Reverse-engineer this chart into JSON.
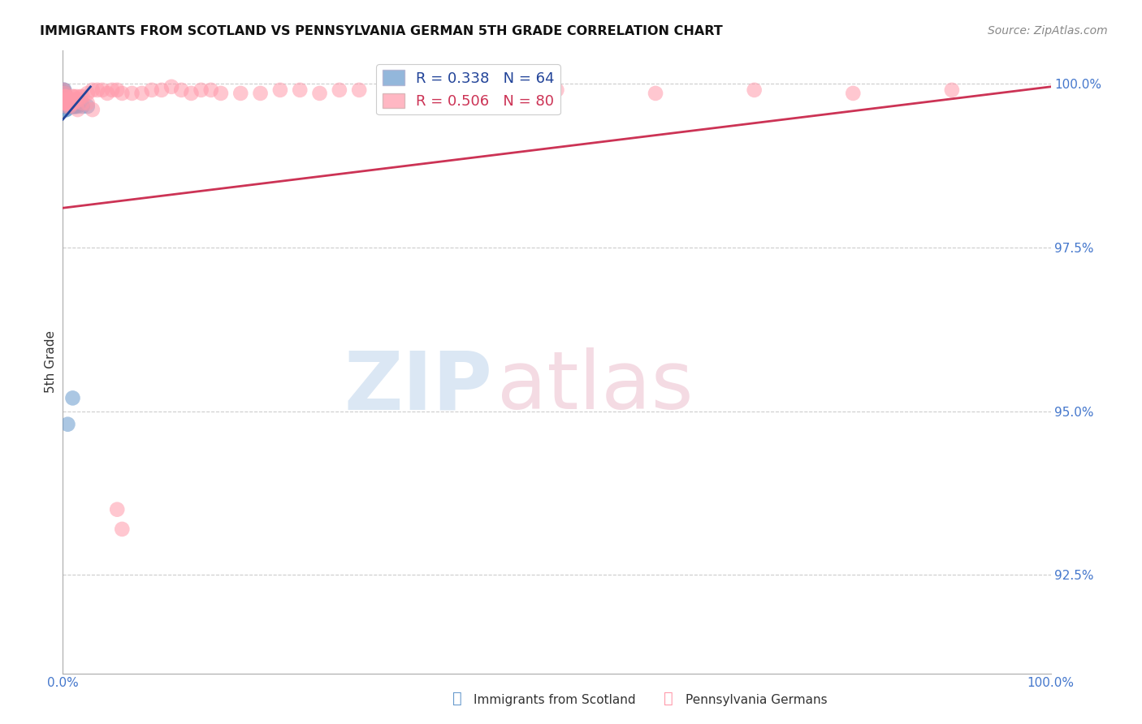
{
  "title": "IMMIGRANTS FROM SCOTLAND VS PENNSYLVANIA GERMAN 5TH GRADE CORRELATION CHART",
  "source": "Source: ZipAtlas.com",
  "ylabel": "5th Grade",
  "xlim": [
    0.0,
    100.0
  ],
  "ylim": [
    91.0,
    100.5
  ],
  "x_ticks": [
    0.0,
    20.0,
    40.0,
    60.0,
    80.0,
    100.0
  ],
  "x_tick_labels": [
    "0.0%",
    "",
    "",
    "",
    "",
    "100.0%"
  ],
  "y_ticks": [
    92.5,
    95.0,
    97.5,
    100.0
  ],
  "y_tick_labels": [
    "92.5%",
    "95.0%",
    "97.5%",
    "100.0%"
  ],
  "scotland_color": "#6699cc",
  "pennsylvania_color": "#ff99aa",
  "scotland_R": 0.338,
  "scotland_N": 64,
  "pennsylvania_R": 0.506,
  "pennsylvania_N": 80,
  "scotland_line_color": "#224499",
  "pennsylvania_line_color": "#cc3355",
  "background_color": "#ffffff",
  "sc_x": [
    0.1,
    0.12,
    0.13,
    0.15,
    0.15,
    0.15,
    0.15,
    0.15,
    0.16,
    0.17,
    0.17,
    0.17,
    0.18,
    0.18,
    0.18,
    0.19,
    0.19,
    0.2,
    0.2,
    0.21,
    0.21,
    0.22,
    0.22,
    0.23,
    0.23,
    0.24,
    0.25,
    0.26,
    0.27,
    0.28,
    0.29,
    0.3,
    0.31,
    0.32,
    0.33,
    0.34,
    0.35,
    0.36,
    0.37,
    0.38,
    0.4,
    0.42,
    0.44,
    0.46,
    0.48,
    0.5,
    0.55,
    0.6,
    0.65,
    0.7,
    0.75,
    0.8,
    0.85,
    0.9,
    0.95,
    1.0,
    1.1,
    1.2,
    1.3,
    1.5,
    2.0,
    2.5,
    1.0,
    0.5
  ],
  "sc_y": [
    99.9,
    99.85,
    99.85,
    99.9,
    99.85,
    99.8,
    99.75,
    99.7,
    99.85,
    99.8,
    99.75,
    99.7,
    99.85,
    99.8,
    99.7,
    99.75,
    99.7,
    99.8,
    99.75,
    99.8,
    99.7,
    99.75,
    99.65,
    99.8,
    99.7,
    99.7,
    99.7,
    99.65,
    99.7,
    99.65,
    99.75,
    99.6,
    99.7,
    99.7,
    99.7,
    99.7,
    99.7,
    99.6,
    99.7,
    99.7,
    99.75,
    99.65,
    99.75,
    99.65,
    99.7,
    99.7,
    99.65,
    99.7,
    99.65,
    99.7,
    99.7,
    99.65,
    99.7,
    99.65,
    99.65,
    99.65,
    99.65,
    99.65,
    99.65,
    99.65,
    99.65,
    99.65,
    95.2,
    94.8
  ],
  "pg_x": [
    0.1,
    0.15,
    0.18,
    0.2,
    0.22,
    0.25,
    0.27,
    0.28,
    0.3,
    0.32,
    0.35,
    0.38,
    0.4,
    0.45,
    0.48,
    0.5,
    0.55,
    0.6,
    0.65,
    0.7,
    0.75,
    0.8,
    0.85,
    0.9,
    0.95,
    1.0,
    1.1,
    1.2,
    1.4,
    1.6,
    1.8,
    2.0,
    2.5,
    3.0,
    3.5,
    4.0,
    4.5,
    5.0,
    5.5,
    6.0,
    7.0,
    8.0,
    9.0,
    10.0,
    11.0,
    12.0,
    13.0,
    14.0,
    15.0,
    16.0,
    18.0,
    20.0,
    22.0,
    24.0,
    26.0,
    28.0,
    30.0,
    35.0,
    40.0,
    50.0,
    60.0,
    70.0,
    80.0,
    90.0,
    0.2,
    0.25,
    0.3,
    0.35,
    0.4,
    0.5,
    0.6,
    0.7,
    0.9,
    1.1,
    1.5,
    2.0,
    2.5,
    3.0,
    5.5,
    6.0
  ],
  "pg_y": [
    99.9,
    99.8,
    99.85,
    99.75,
    99.8,
    99.7,
    99.75,
    99.7,
    99.75,
    99.7,
    99.8,
    99.65,
    99.7,
    99.75,
    99.7,
    99.7,
    99.7,
    99.7,
    99.75,
    99.7,
    99.75,
    99.7,
    99.7,
    99.7,
    99.75,
    99.8,
    99.8,
    99.75,
    99.8,
    99.75,
    99.8,
    99.8,
    99.85,
    99.9,
    99.9,
    99.9,
    99.85,
    99.9,
    99.9,
    99.85,
    99.85,
    99.85,
    99.9,
    99.9,
    99.95,
    99.9,
    99.85,
    99.9,
    99.9,
    99.85,
    99.85,
    99.85,
    99.9,
    99.9,
    99.85,
    99.9,
    99.9,
    99.85,
    99.9,
    99.9,
    99.85,
    99.9,
    99.85,
    99.9,
    99.75,
    99.75,
    99.75,
    99.7,
    99.75,
    99.75,
    99.75,
    99.65,
    99.7,
    99.7,
    99.6,
    99.7,
    99.7,
    99.6,
    93.5,
    93.2
  ]
}
